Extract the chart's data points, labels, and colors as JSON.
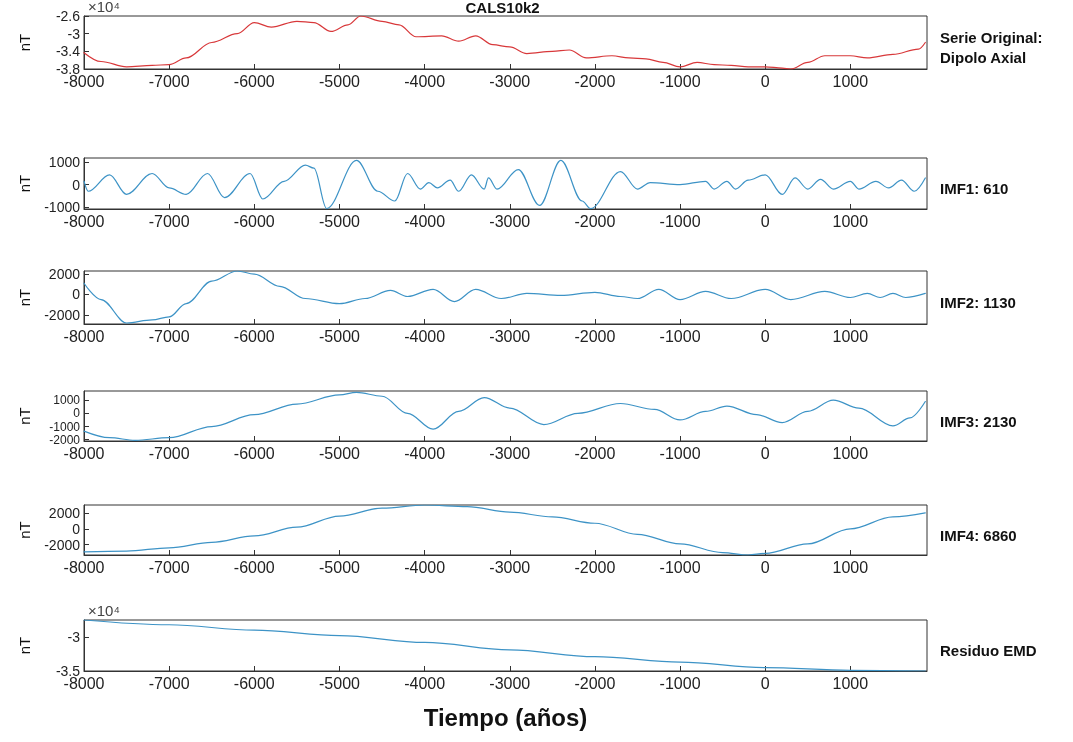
{
  "chart_data": [
    {
      "type": "line",
      "title": "CALS10k2",
      "ylabel": "nT",
      "annotations": [
        "×10⁴"
      ],
      "xlim": [
        -8000,
        1900
      ],
      "xticks": [
        -8000,
        -7000,
        -6000,
        -5000,
        -4000,
        -3000,
        -2000,
        -1000,
        0,
        1000
      ],
      "ylim": [
        -3.8,
        -2.6
      ],
      "yticks": [
        -2.6,
        -3,
        -3.4,
        -3.8
      ],
      "series": [
        {
          "name": "Serie Original: Dipolo Axial",
          "color": "#d8383a",
          "x": [
            -8000,
            -7800,
            -7500,
            -7200,
            -7000,
            -6800,
            -6500,
            -6200,
            -6000,
            -5800,
            -5500,
            -5300,
            -5100,
            -4900,
            -4750,
            -4500,
            -4300,
            -4100,
            -3800,
            -3600,
            -3400,
            -3200,
            -3000,
            -2800,
            -2500,
            -2300,
            -2100,
            -1800,
            -1600,
            -1400,
            -1200,
            -1000,
            -800,
            -600,
            -400,
            -200,
            0,
            200,
            300,
            500,
            700,
            1000,
            1200,
            1500,
            1800,
            1880
          ],
          "values": [
            -3.43,
            -3.63,
            -3.75,
            -3.72,
            -3.7,
            -3.55,
            -3.2,
            -3.0,
            -2.75,
            -2.85,
            -2.72,
            -2.75,
            -2.95,
            -2.8,
            -2.6,
            -2.72,
            -2.8,
            -3.07,
            -3.05,
            -3.17,
            -3.05,
            -3.25,
            -3.3,
            -3.45,
            -3.4,
            -3.37,
            -3.55,
            -3.5,
            -3.55,
            -3.57,
            -3.65,
            -3.75,
            -3.65,
            -3.7,
            -3.72,
            -3.75,
            -3.75,
            -3.78,
            -3.8,
            -3.65,
            -3.5,
            -3.5,
            -3.55,
            -3.47,
            -3.35,
            -3.2
          ]
        }
      ]
    },
    {
      "type": "line",
      "ylabel": "nT",
      "xlim": [
        -8000,
        1900
      ],
      "xticks": [
        -8000,
        -7000,
        -6000,
        -5000,
        -4000,
        -3000,
        -2000,
        -1000,
        0,
        1000
      ],
      "ylim": [
        -1100,
        1200
      ],
      "yticks": [
        1000,
        0,
        -1000
      ],
      "series": [
        {
          "name": "IMF1: 610",
          "color": "#3d93c6",
          "x": [
            -8000,
            -7950,
            -7700,
            -7500,
            -7200,
            -7000,
            -6800,
            -6550,
            -6350,
            -6050,
            -5900,
            -5650,
            -5400,
            -5300,
            -5150,
            -4800,
            -4550,
            -4350,
            -4200,
            -4050,
            -3950,
            -3850,
            -3700,
            -3600,
            -3450,
            -3300,
            -3250,
            -3150,
            -2900,
            -2650,
            -2400,
            -2150,
            -2050,
            -1700,
            -1500,
            -1350,
            -1000,
            -700,
            -600,
            -450,
            -350,
            -200,
            0,
            200,
            350,
            500,
            650,
            800,
            1000,
            1100,
            1300,
            1450,
            1600,
            1750,
            1880
          ],
          "values": [
            150,
            -300,
            440,
            -440,
            500,
            -150,
            -440,
            500,
            -590,
            500,
            -650,
            150,
            880,
            740,
            -1080,
            1090,
            -300,
            -740,
            500,
            -200,
            90,
            -150,
            200,
            -300,
            440,
            -200,
            300,
            -200,
            680,
            -940,
            1090,
            -740,
            -1080,
            590,
            -200,
            90,
            0,
            150,
            -200,
            150,
            -200,
            200,
            440,
            -440,
            300,
            -200,
            240,
            -200,
            150,
            -200,
            150,
            -150,
            200,
            -300,
            300
          ]
        }
      ]
    },
    {
      "type": "line",
      "ylabel": "nT",
      "xlim": [
        -8000,
        1900
      ],
      "xticks": [
        -8000,
        -7000,
        -6000,
        -5000,
        -4000,
        -3000,
        -2000,
        -1000,
        0,
        1000
      ],
      "ylim": [
        -2900,
        2300
      ],
      "yticks": [
        2000,
        0,
        -2000
      ],
      "series": [
        {
          "name": "IMF2: 1130",
          "color": "#3d93c6",
          "x": [
            -8000,
            -7800,
            -7500,
            -7200,
            -7000,
            -6800,
            -6500,
            -6200,
            -6000,
            -5700,
            -5400,
            -5000,
            -4700,
            -4400,
            -4200,
            -3900,
            -3650,
            -3400,
            -3100,
            -2800,
            -2400,
            -2000,
            -1700,
            -1500,
            -1250,
            -1000,
            -700,
            -400,
            0,
            300,
            700,
            1000,
            1200,
            1350,
            1500,
            1650,
            1880
          ],
          "values": [
            1100,
            -500,
            -2800,
            -2500,
            -2200,
            -900,
            1300,
            2300,
            2000,
            800,
            -400,
            -900,
            -400,
            400,
            -200,
            500,
            -700,
            500,
            -400,
            100,
            -100,
            200,
            -200,
            -400,
            500,
            -500,
            300,
            -400,
            500,
            -500,
            300,
            -300,
            100,
            -300,
            100,
            -300,
            100
          ]
        }
      ]
    },
    {
      "type": "line",
      "ylabel": "nT",
      "xlim": [
        -8000,
        1900
      ],
      "xticks": [
        -8000,
        -7000,
        -6000,
        -5000,
        -4000,
        -3000,
        -2000,
        -1000,
        0,
        1000
      ],
      "ylim": [
        -2100,
        1700
      ],
      "yticks": [
        1000,
        0,
        -1000,
        -2000
      ],
      "series": [
        {
          "name": "IMF3: 2130",
          "color": "#3d93c6",
          "x": [
            -8000,
            -7700,
            -7400,
            -7000,
            -6500,
            -6000,
            -5500,
            -5000,
            -4800,
            -4500,
            -4200,
            -3900,
            -3600,
            -3300,
            -3000,
            -2600,
            -2200,
            -1700,
            -1300,
            -1000,
            -700,
            -450,
            -100,
            200,
            500,
            800,
            1100,
            1500,
            1700,
            1880
          ],
          "values": [
            -1350,
            -1850,
            -2050,
            -1850,
            -1000,
            -100,
            700,
            1400,
            1600,
            1300,
            0,
            -1200,
            150,
            1200,
            400,
            -850,
            0,
            750,
            300,
            -500,
            150,
            550,
            -100,
            -700,
            150,
            1000,
            400,
            -950,
            -350,
            900
          ]
        }
      ]
    },
    {
      "type": "line",
      "ylabel": "nT",
      "xlim": [
        -8000,
        1900
      ],
      "xticks": [
        -8000,
        -7000,
        -6000,
        -5000,
        -4000,
        -3000,
        -2000,
        -1000,
        0,
        1000
      ],
      "ylim": [
        -3300,
        3000
      ],
      "yticks": [
        2000,
        0,
        -2000
      ],
      "series": [
        {
          "name": "IMF4: 6860",
          "color": "#3d93c6",
          "x": [
            -8000,
            -7500,
            -7000,
            -6500,
            -6000,
            -5500,
            -5000,
            -4500,
            -4000,
            -3500,
            -3000,
            -2500,
            -2000,
            -1500,
            -1000,
            -500,
            -200,
            0,
            500,
            1000,
            1500,
            1880
          ],
          "values": [
            -2900,
            -2800,
            -2400,
            -1700,
            -900,
            200,
            1600,
            2600,
            3000,
            2800,
            2100,
            1500,
            700,
            -700,
            -1900,
            -3000,
            -3300,
            -3100,
            -1900,
            0,
            1500,
            2000
          ]
        }
      ]
    },
    {
      "type": "line",
      "ylabel": "nT",
      "xlabel": "Tiempo (años)",
      "annotations": [
        "×10⁴"
      ],
      "xlim": [
        -8000,
        1900
      ],
      "xticks": [
        -8000,
        -7000,
        -6000,
        -5000,
        -4000,
        -3000,
        -2000,
        -1000,
        0,
        1000
      ],
      "ylim": [
        -3.5,
        -2.75
      ],
      "yticks": [
        -3,
        -3.5
      ],
      "series": [
        {
          "name": "Residuo EMD",
          "color": "#3d93c6",
          "x": [
            -8000,
            -7000,
            -6000,
            -5000,
            -4000,
            -3000,
            -2000,
            -1000,
            0,
            1000,
            1880
          ],
          "values": [
            -2.75,
            -2.82,
            -2.9,
            -2.98,
            -3.08,
            -3.19,
            -3.29,
            -3.37,
            -3.45,
            -3.49,
            -3.5
          ]
        }
      ]
    }
  ]
}
